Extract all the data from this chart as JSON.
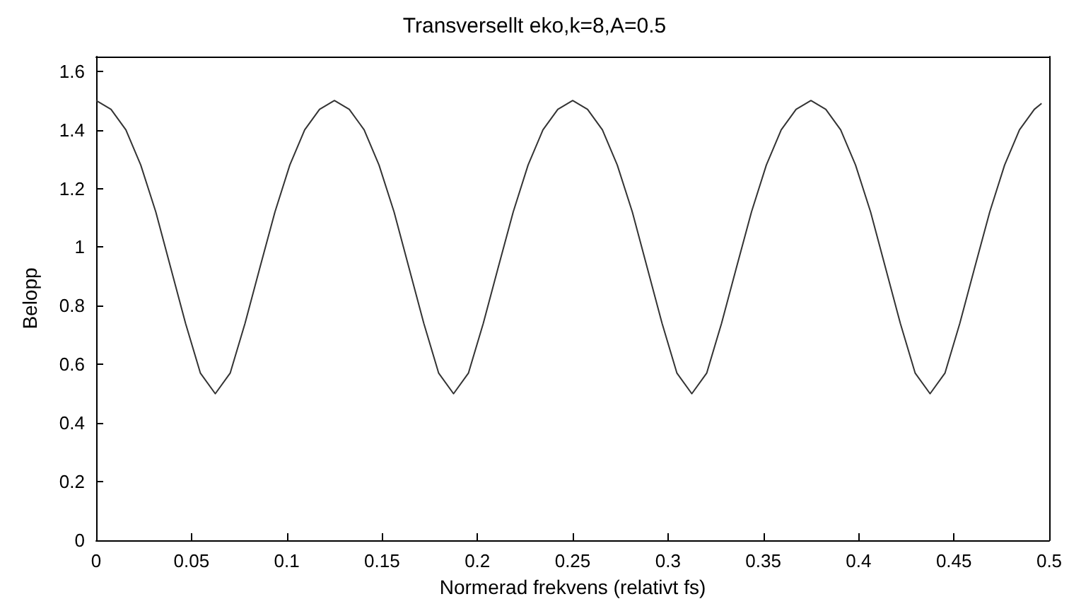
{
  "chart_data": {
    "type": "line",
    "title": "Transversellt eko,k=8,A=0.5",
    "xlabel": "Normerad frekvens (relativt fs)",
    "ylabel": "Belopp",
    "x": [
      0,
      0.0078,
      0.0156,
      0.0234,
      0.0313,
      0.0391,
      0.0469,
      0.0547,
      0.0625,
      0.0703,
      0.0781,
      0.0859,
      0.0938,
      0.1016,
      0.1094,
      0.1172,
      0.125,
      0.1328,
      0.1406,
      0.1484,
      0.1563,
      0.1641,
      0.1719,
      0.1797,
      0.1875,
      0.1953,
      0.2031,
      0.2109,
      0.2188,
      0.2266,
      0.2344,
      0.2422,
      0.25,
      0.2578,
      0.2656,
      0.2734,
      0.2813,
      0.2891,
      0.2969,
      0.3047,
      0.3125,
      0.3203,
      0.3281,
      0.3359,
      0.3438,
      0.3516,
      0.3594,
      0.3672,
      0.375,
      0.3828,
      0.3906,
      0.3984,
      0.4063,
      0.4141,
      0.4219,
      0.4297,
      0.4375,
      0.4453,
      0.4531,
      0.4609,
      0.4688,
      0.4766,
      0.4844,
      0.4922,
      0.496
    ],
    "series": [
      {
        "color": "#333333",
        "values": [
          1.5,
          1.47,
          1.4,
          1.28,
          1.12,
          0.93,
          0.74,
          0.57,
          0.5,
          0.57,
          0.74,
          0.93,
          1.12,
          1.28,
          1.4,
          1.47,
          1.5,
          1.47,
          1.4,
          1.28,
          1.12,
          0.93,
          0.74,
          0.57,
          0.5,
          0.57,
          0.74,
          0.93,
          1.12,
          1.28,
          1.4,
          1.47,
          1.5,
          1.47,
          1.4,
          1.28,
          1.12,
          0.93,
          0.74,
          0.57,
          0.5,
          0.57,
          0.74,
          0.93,
          1.12,
          1.28,
          1.4,
          1.47,
          1.5,
          1.47,
          1.4,
          1.28,
          1.12,
          0.93,
          0.74,
          0.57,
          0.5,
          0.57,
          0.74,
          0.93,
          1.12,
          1.28,
          1.4,
          1.47,
          1.49
        ]
      }
    ],
    "xlim": [
      0,
      0.5
    ],
    "xticks": [
      0,
      0.05,
      0.1,
      0.15,
      0.2,
      0.25,
      0.3,
      0.35,
      0.4,
      0.45,
      0.5
    ],
    "ylim": [
      0,
      1.65
    ],
    "yticks": [
      0,
      0.2,
      0.4,
      0.6,
      0.8,
      1,
      1.2,
      1.4,
      1.6
    ],
    "grid": false,
    "marker": "none",
    "line_style": "solid"
  }
}
